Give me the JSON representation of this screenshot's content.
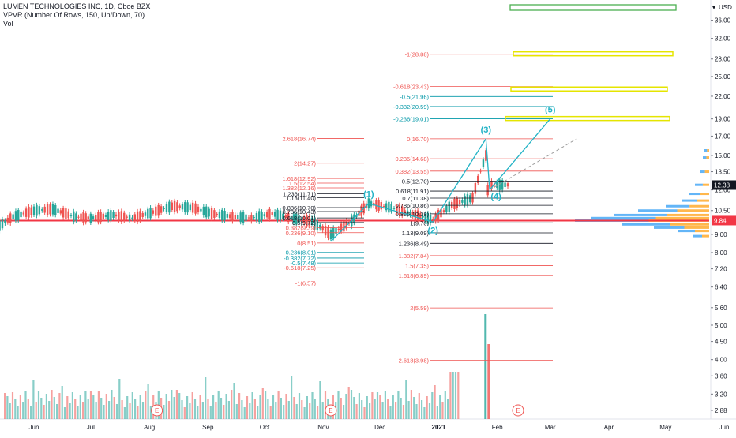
{
  "legend": {
    "title": "LUMEN TECHNOLOGIES INC, 1D, Cboe BZX",
    "indicator": "VPVR (Number Of Rows, 150, Up/Down, 70)",
    "volume": "Vol"
  },
  "colors": {
    "up": "#26a69a",
    "down": "#ef5350",
    "price_line": "#f23645",
    "wave": "#22b3c6",
    "fib_box": "#e5e500",
    "vpvr_up": "#2196f3",
    "vpvr_down": "#ff9800",
    "last_price": "#131722",
    "green_box": "#4caf50"
  },
  "currency": "USD",
  "chart_data": {
    "type": "candlestick",
    "x_axis_labels": [
      "Jun",
      "Jul",
      "Aug",
      "Sep",
      "Oct",
      "Nov",
      "Dec",
      "2021",
      "Feb",
      "Mar",
      "Apr",
      "May",
      "Jun"
    ],
    "y_axis_ticks": [
      36.0,
      32.0,
      28.0,
      25.0,
      22.0,
      19.0,
      17.0,
      15.0,
      13.5,
      12.0,
      10.5,
      9.0,
      8.0,
      7.2,
      6.4,
      5.6,
      5.0,
      4.5,
      4.0,
      3.6,
      3.2,
      2.88
    ],
    "y_scale": "log",
    "y_range": [
      2.75,
      40.5
    ],
    "price_tags": [
      {
        "label": "12.38",
        "value": 12.38
      },
      {
        "label": "9.84",
        "value": 9.84
      }
    ],
    "horizontal_line": 9.84,
    "dates": [
      "2020-05-11",
      "2020-05-21",
      "2020-06-01",
      "2020-06-11",
      "2020-06-22",
      "2020-07-01",
      "2020-07-13",
      "2020-07-23",
      "2020-08-03",
      "2020-08-13",
      "2020-08-24",
      "2020-09-03",
      "2020-09-14",
      "2020-09-24",
      "2020-10-05",
      "2020-10-15",
      "2020-10-26",
      "2020-11-05",
      "2020-11-16",
      "2020-11-25",
      "2020-12-07",
      "2020-12-17",
      "2020-12-29",
      "2021-01-08",
      "2021-01-19",
      "2021-01-26",
      "2021-01-27",
      "2021-01-29",
      "2021-02-08"
    ],
    "closes": [
      9.3,
      10.1,
      10.5,
      10.6,
      10.1,
      10.0,
      10.2,
      10.0,
      10.4,
      10.8,
      10.7,
      10.3,
      10.1,
      10.0,
      10.3,
      10.0,
      9.8,
      9.0,
      9.8,
      11.0,
      10.7,
      10.3,
      9.9,
      10.9,
      11.4,
      15.0,
      12.0,
      12.4,
      12.4
    ],
    "volume_note": "volume bars shown at bottom, spike near late January 2021",
    "earnings_markers": [
      "E",
      "E",
      "E"
    ],
    "elliott_wave_labels": [
      "(1)",
      "(2)",
      "(3)",
      "(4)",
      "(5)"
    ],
    "elliott_wave_points": [
      {
        "label": "(1)",
        "date": "2020-11-25",
        "value": 11.0
      },
      {
        "label": "(2)",
        "date": "2020-12-29",
        "value": 9.75
      },
      {
        "label": "(3)",
        "date": "2021-01-26",
        "value": 16.7
      },
      {
        "label": "(4)",
        "date": "2021-01-28",
        "value": 12.0
      },
      {
        "label": "(5)",
        "date": "2021-03-01",
        "value": 19.0
      }
    ],
    "fib_left": [
      "2.618(16.74)",
      "2(14.27)",
      "1.618(12.92)",
      "1.5(12.54)",
      "1.382(12.16)",
      "1.236(11.71)",
      "1.13(11.40)",
      "0.886(10.70)",
      "0.786(10.43)",
      "0.618(10.01)",
      "0.5(9.72)",
      "0.382(9.39)",
      "0.236(9.10)",
      "0(8.51)",
      "-0.236(8.01)",
      "-0.382(7.72)",
      "-0.5(7.48)",
      "-0.618(7.25)",
      "-1(6.57)"
    ],
    "fib_right": [
      "-1(28.88)",
      "-0.618(23.43)",
      "-0.5(21.96)",
      "-0.382(20.59)",
      "-0.236(19.01)",
      "0(16.70)",
      "0.236(14.68)",
      "0.382(13.55)",
      "0.5(12.70)",
      "0.618(11.91)",
      "0.7(11.38)",
      "0.786(10.86)",
      "0.886(10.28)",
      "1(9.70)",
      "1.13(9.09)",
      "1.236(8.49)",
      "1.382(7.84)",
      "1.5(7.35)",
      "1.618(6.89)",
      "2(5.59)",
      "2.618(3.98)"
    ]
  }
}
